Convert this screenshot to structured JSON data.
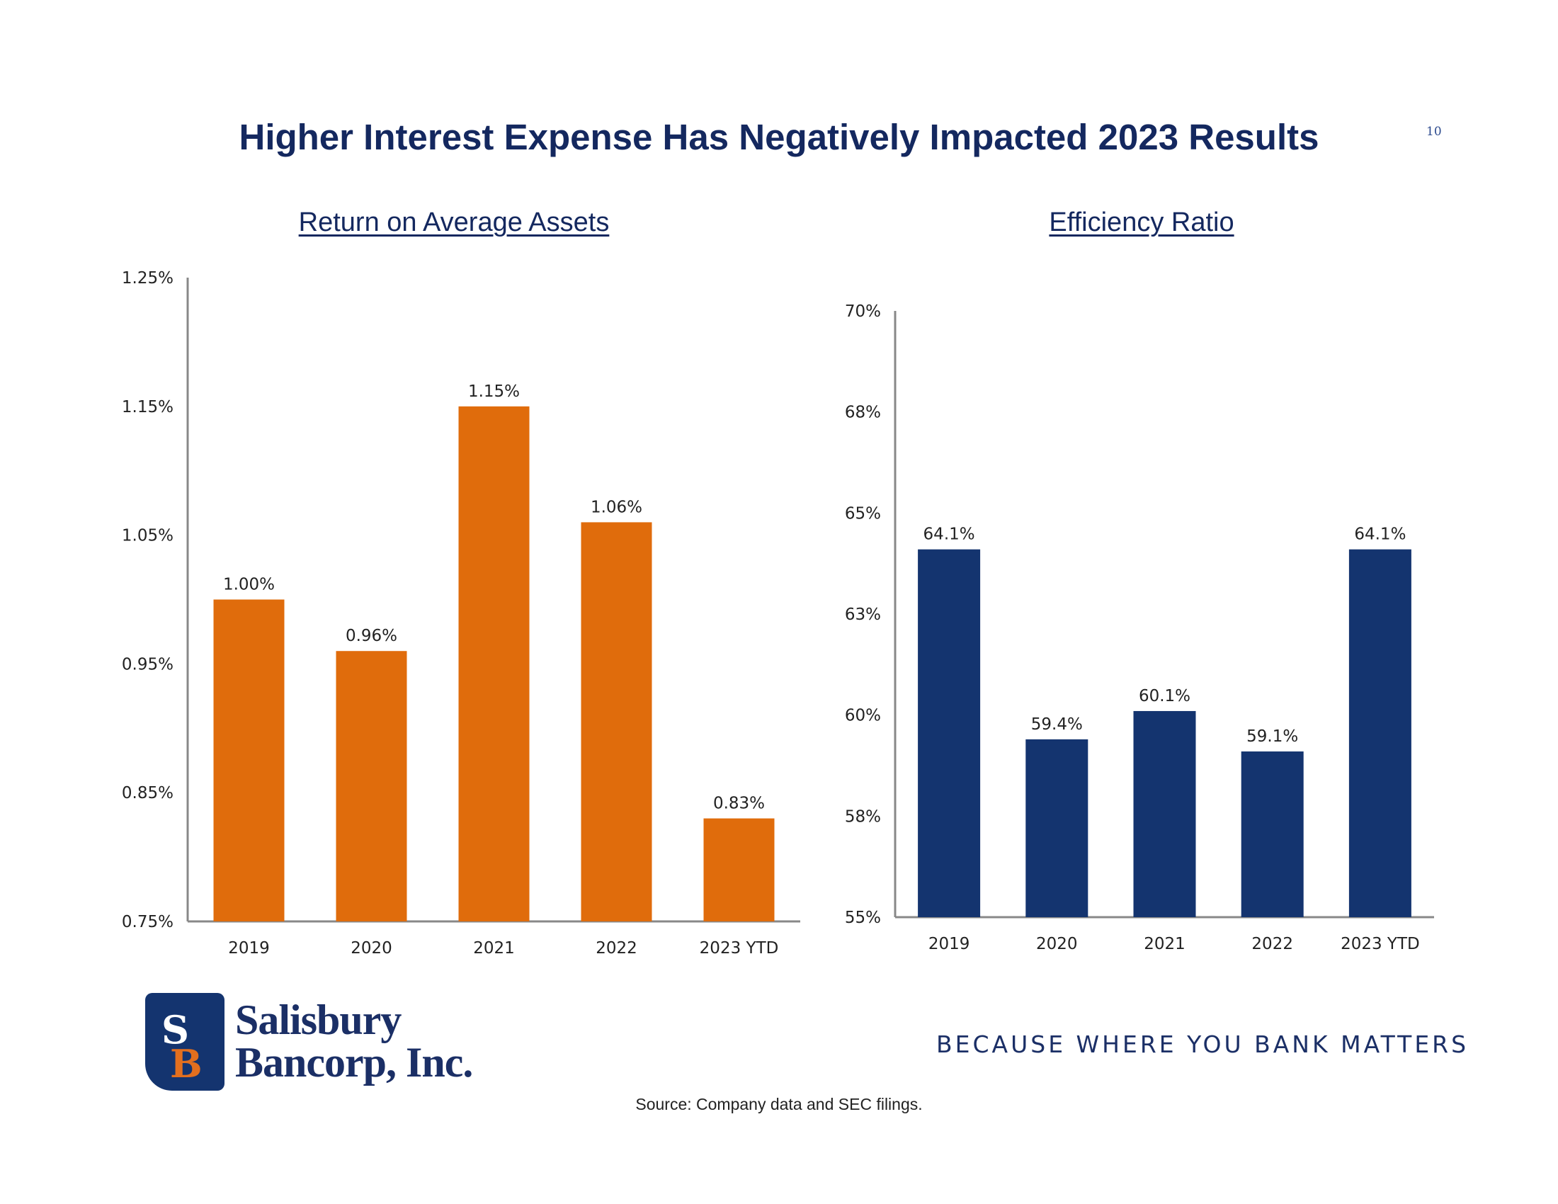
{
  "slide": {
    "title": "Higher Interest Expense Has Negatively Impacted 2023 Results",
    "page_number": "10",
    "source": "Source: Company data and SEC filings.",
    "tagline": "BECAUSE WHERE YOU BANK MATTERS"
  },
  "logo": {
    "monogram_top": "S",
    "monogram_bottom": "B",
    "line1": "Salisbury",
    "line2": "Bancorp, Inc.",
    "box_color": "#14346f",
    "accent_color": "#e36f1e"
  },
  "chart_data": [
    {
      "type": "bar",
      "title": "Return on Average Assets",
      "categories": [
        "2019",
        "2020",
        "2021",
        "2022",
        "2023 YTD"
      ],
      "values": [
        1.0,
        0.96,
        1.15,
        1.06,
        0.83
      ],
      "data_labels": [
        "1.00%",
        "0.96%",
        "1.15%",
        "1.06%",
        "0.83%"
      ],
      "ylim": [
        0.75,
        1.25
      ],
      "y_ticks": [
        0.75,
        0.85,
        0.95,
        1.05,
        1.15,
        1.25
      ],
      "y_tick_labels": [
        "0.75%",
        "0.85%",
        "0.95%",
        "1.05%",
        "1.15%",
        "1.25%"
      ],
      "xlabel": "",
      "ylabel": "",
      "color": "#e06c0c",
      "grid": false,
      "legend": "none"
    },
    {
      "type": "bar",
      "title": "Efficiency Ratio",
      "categories": [
        "2019",
        "2020",
        "2021",
        "2022",
        "2023 YTD"
      ],
      "values": [
        64.1,
        59.4,
        60.1,
        59.1,
        64.1
      ],
      "data_labels": [
        "64.1%",
        "59.4%",
        "60.1%",
        "59.1%",
        "64.1%"
      ],
      "ylim": [
        55,
        70
      ],
      "y_ticks": [
        55,
        57.5,
        60,
        62.5,
        65,
        67.5,
        70
      ],
      "y_tick_labels": [
        "55%",
        "58%",
        "60%",
        "63%",
        "65%",
        "68%",
        "70%"
      ],
      "xlabel": "",
      "ylabel": "",
      "color": "#14346f",
      "grid": false,
      "legend": "none"
    }
  ]
}
